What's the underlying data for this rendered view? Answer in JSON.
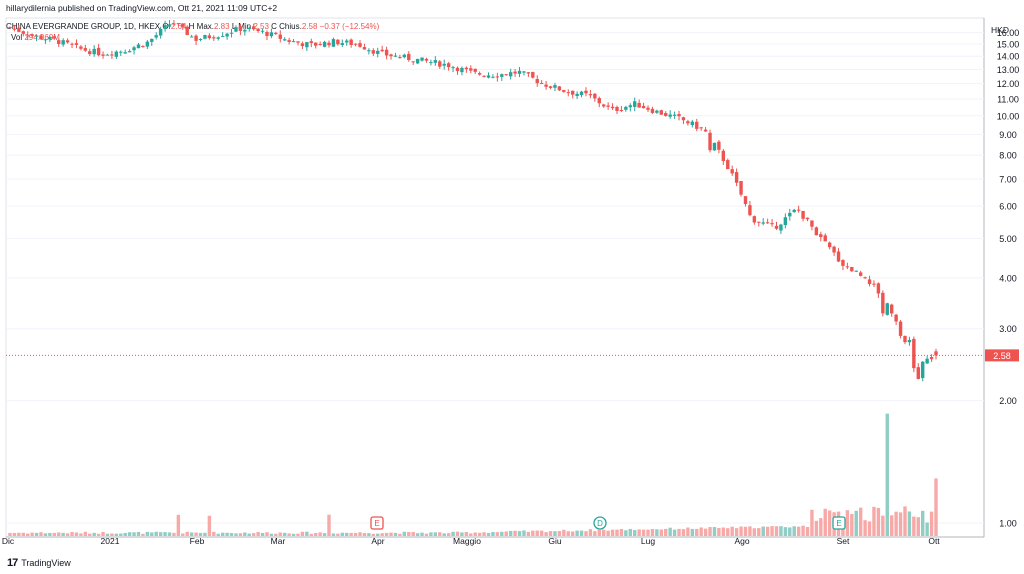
{
  "header": {
    "publisher_line": "hillarydilernia published on TradingView.com, Ott 21, 2021 11:09 UTC+2"
  },
  "legend": {
    "symbol": "CHINA EVERGRANDE GROUP, 1D, HKEX",
    "open_label": "O",
    "open_value": "2.64",
    "high_label": "H",
    "high_prefix": "Max.",
    "high_value": "2.83",
    "low_label": "L",
    "low_prefix": "Min.",
    "low_value": "2.53",
    "close_label": "C",
    "close_prefix": "Chius.",
    "close_value": "2.58",
    "change": "−0.37 (−12.54%)",
    "volume_label": "Vol",
    "volume_value": "294.069M"
  },
  "footer": {
    "brand": "TradingView"
  },
  "colors": {
    "up": "#26a69a",
    "down": "#ef5350",
    "up_volume": "#8fcdc5",
    "down_volume": "#f7a9a7",
    "grid": "#f0f3fa",
    "axis_text": "#131722",
    "price_tag": "#ef5350"
  },
  "chart_data": {
    "type": "candlestick",
    "title": "CHINA EVERGRANDE GROUP, 1D, HKEX",
    "currency": "HKD",
    "last_price": "2.58",
    "ylim": [
      0.5,
      17.0
    ],
    "y_scale": "log",
    "y_ticks": [
      "1.00",
      "2.00",
      "2.58",
      "3.00",
      "4.00",
      "5.00",
      "6.00",
      "7.00",
      "8.00",
      "9.00",
      "10.00",
      "11.00",
      "12.00",
      "13.00",
      "14.00",
      "15.00",
      "16.00"
    ],
    "x_tick_labels": [
      "Dic",
      "2021",
      "Feb",
      "Mar",
      "Apr",
      "Maggio",
      "Giu",
      "Lug",
      "Ago",
      "Set",
      "Ott"
    ],
    "event_markers": [
      {
        "letter": "E",
        "near": "Apr"
      },
      {
        "letter": "D",
        "near": "Giu"
      },
      {
        "letter": "E",
        "near": "Set"
      }
    ],
    "weekly_closes": [
      {
        "week": "Dic-1",
        "close": 16.5
      },
      {
        "week": "Dic-2",
        "close": 15.7
      },
      {
        "week": "Dic-3",
        "close": 15.3
      },
      {
        "week": "Dic-4",
        "close": 14.6
      },
      {
        "week": "2021-1",
        "close": 14.2
      },
      {
        "week": "2021-2",
        "close": 14.5
      },
      {
        "week": "2021-3",
        "close": 15.2
      },
      {
        "week": "2021-4",
        "close": 17.0
      },
      {
        "week": "Feb-1",
        "close": 15.4
      },
      {
        "week": "Feb-2",
        "close": 15.8
      },
      {
        "week": "Feb-3",
        "close": 16.4
      },
      {
        "week": "Feb-4",
        "close": 16.0
      },
      {
        "week": "Mar-1",
        "close": 15.3
      },
      {
        "week": "Mar-2",
        "close": 14.9
      },
      {
        "week": "Mar-3",
        "close": 15.2
      },
      {
        "week": "Mar-4",
        "close": 15.0
      },
      {
        "week": "Apr-1",
        "close": 14.2
      },
      {
        "week": "Apr-2",
        "close": 13.9
      },
      {
        "week": "Apr-3",
        "close": 13.6
      },
      {
        "week": "Apr-4",
        "close": 13.3
      },
      {
        "week": "Maggio-1",
        "close": 12.7
      },
      {
        "week": "Maggio-2",
        "close": 12.6
      },
      {
        "week": "Maggio-3",
        "close": 12.8
      },
      {
        "week": "Maggio-4",
        "close": 12.0
      },
      {
        "week": "Giu-1",
        "close": 11.5
      },
      {
        "week": "Giu-2",
        "close": 11.2
      },
      {
        "week": "Giu-3",
        "close": 10.3
      },
      {
        "week": "Giu-4",
        "close": 10.7
      },
      {
        "week": "Lug-1",
        "close": 10.2
      },
      {
        "week": "Lug-2",
        "close": 9.8
      },
      {
        "week": "Lug-3",
        "close": 9.2
      },
      {
        "week": "Lug-4",
        "close": 7.5
      },
      {
        "week": "Ago-1",
        "close": 5.6
      },
      {
        "week": "Ago-2",
        "close": 5.3
      },
      {
        "week": "Ago-3",
        "close": 5.9
      },
      {
        "week": "Ago-4",
        "close": 5.0
      },
      {
        "week": "Set-1",
        "close": 4.3
      },
      {
        "week": "Set-2",
        "close": 4.0
      },
      {
        "week": "Set-3",
        "close": 3.4
      },
      {
        "week": "Set-4",
        "close": 2.4
      },
      {
        "week": "Ott-1",
        "close": 2.58
      }
    ]
  }
}
